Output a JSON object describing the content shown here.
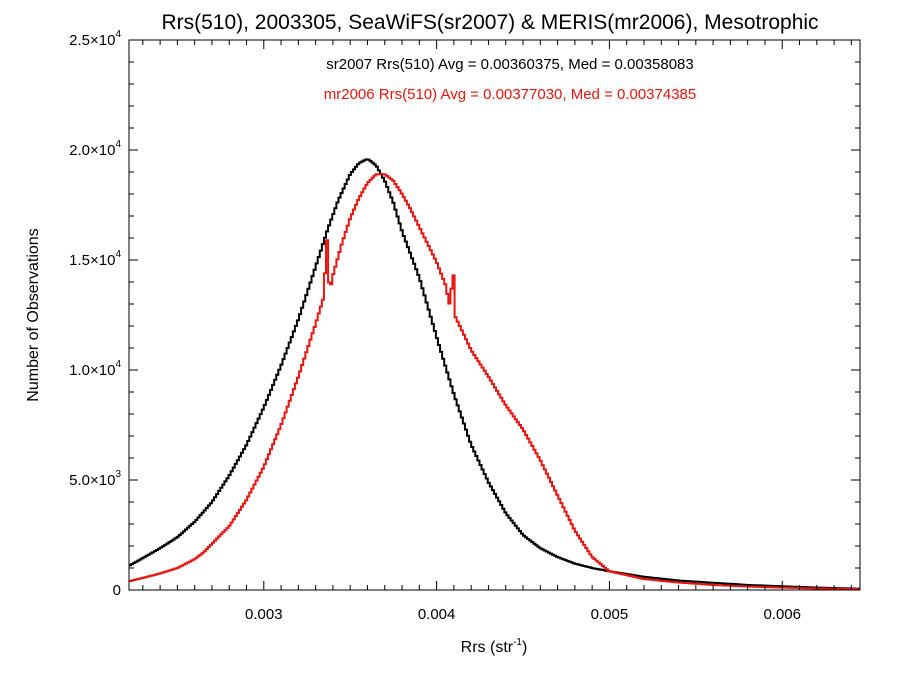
{
  "chart_data": {
    "type": "line",
    "title": "Rrs(510), 2003305, SeaWiFS(sr2007) & MERIS(mr2006), Mesotrophic",
    "xlabel": {
      "base": "Rrs (str",
      "sup": "-1",
      "tail": ")"
    },
    "ylabel": "Number of Observations",
    "xlim": [
      0.00222,
      0.00645
    ],
    "ylim": [
      0,
      25000
    ],
    "grid": false,
    "step": true,
    "x_ticks": [
      {
        "value": 0.003,
        "label": "0.003"
      },
      {
        "value": 0.004,
        "label": "0.004"
      },
      {
        "value": 0.005,
        "label": "0.005"
      },
      {
        "value": 0.006,
        "label": "0.006"
      }
    ],
    "y_ticks": [
      {
        "value": 0,
        "mant": "0",
        "exp": ""
      },
      {
        "value": 5000,
        "mant": "5.0×10",
        "exp": "3"
      },
      {
        "value": 10000,
        "mant": "1.0×10",
        "exp": "4"
      },
      {
        "value": 15000,
        "mant": "1.5×10",
        "exp": "4"
      },
      {
        "value": 20000,
        "mant": "2.0×10",
        "exp": "4"
      },
      {
        "value": 25000,
        "mant": "2.5×10",
        "exp": "4"
      }
    ],
    "annotations": [
      {
        "text": "sr2007 Rrs(510) Avg = 0.00360375, Med = 0.00358083",
        "color": "#000000"
      },
      {
        "text": "mr2006 Rrs(510) Avg = 0.00377030, Med = 0.00374385",
        "color": "#e8140f"
      }
    ],
    "series": [
      {
        "color": "#000000",
        "points": [
          [
            0.00222,
            1100
          ],
          [
            0.0023,
            1450
          ],
          [
            0.0024,
            1900
          ],
          [
            0.0025,
            2400
          ],
          [
            0.0026,
            3100
          ],
          [
            0.0027,
            4000
          ],
          [
            0.0028,
            5200
          ],
          [
            0.0029,
            6600
          ],
          [
            0.003,
            8300
          ],
          [
            0.0031,
            10200
          ],
          [
            0.0032,
            12300
          ],
          [
            0.0033,
            14700
          ],
          [
            0.00337,
            16400
          ],
          [
            0.00343,
            17700
          ],
          [
            0.0035,
            18900
          ],
          [
            0.00355,
            19400
          ],
          [
            0.0036,
            19600
          ],
          [
            0.00365,
            19300
          ],
          [
            0.0037,
            18600
          ],
          [
            0.00375,
            17600
          ],
          [
            0.0038,
            16300
          ],
          [
            0.0039,
            14200
          ],
          [
            0.004,
            11500
          ],
          [
            0.0041,
            8900
          ],
          [
            0.0042,
            6600
          ],
          [
            0.0043,
            4900
          ],
          [
            0.0044,
            3500
          ],
          [
            0.0045,
            2500
          ],
          [
            0.0046,
            1900
          ],
          [
            0.0047,
            1500
          ],
          [
            0.0048,
            1200
          ],
          [
            0.0049,
            1000
          ],
          [
            0.005,
            850
          ],
          [
            0.0052,
            600
          ],
          [
            0.0054,
            430
          ],
          [
            0.0056,
            330
          ],
          [
            0.0058,
            230
          ],
          [
            0.006,
            170
          ],
          [
            0.0062,
            110
          ],
          [
            0.00645,
            60
          ]
        ]
      },
      {
        "color": "#e8140f",
        "points": [
          [
            0.00222,
            400
          ],
          [
            0.0023,
            550
          ],
          [
            0.0024,
            750
          ],
          [
            0.0025,
            1000
          ],
          [
            0.0026,
            1400
          ],
          [
            0.00265,
            1700
          ],
          [
            0.0027,
            2100
          ],
          [
            0.0028,
            2900
          ],
          [
            0.0029,
            4100
          ],
          [
            0.003,
            5600
          ],
          [
            0.0031,
            7500
          ],
          [
            0.0032,
            9700
          ],
          [
            0.0033,
            12100
          ],
          [
            0.00335,
            13400
          ],
          [
            0.00336,
            15900
          ],
          [
            0.00337,
            15900
          ],
          [
            0.00338,
            13500
          ],
          [
            0.0034,
            14300
          ],
          [
            0.00345,
            15700
          ],
          [
            0.0035,
            16900
          ],
          [
            0.00355,
            17800
          ],
          [
            0.0036,
            18500
          ],
          [
            0.00365,
            18900
          ],
          [
            0.0037,
            18900
          ],
          [
            0.00375,
            18600
          ],
          [
            0.0038,
            18000
          ],
          [
            0.00385,
            17300
          ],
          [
            0.0039,
            16500
          ],
          [
            0.00395,
            15700
          ],
          [
            0.004,
            14900
          ],
          [
            0.00405,
            13900
          ],
          [
            0.00408,
            12800
          ],
          [
            0.00409,
            14300
          ],
          [
            0.0041,
            14300
          ],
          [
            0.00411,
            12400
          ],
          [
            0.0042,
            10900
          ],
          [
            0.0043,
            9700
          ],
          [
            0.0044,
            8400
          ],
          [
            0.0045,
            7300
          ],
          [
            0.0046,
            5900
          ],
          [
            0.0047,
            4300
          ],
          [
            0.0048,
            2700
          ],
          [
            0.00485,
            2100
          ],
          [
            0.0049,
            1500
          ],
          [
            0.005,
            850
          ],
          [
            0.0052,
            500
          ],
          [
            0.0054,
            340
          ],
          [
            0.0056,
            230
          ],
          [
            0.0058,
            160
          ],
          [
            0.006,
            110
          ],
          [
            0.0062,
            70
          ],
          [
            0.00645,
            40
          ]
        ]
      }
    ]
  }
}
